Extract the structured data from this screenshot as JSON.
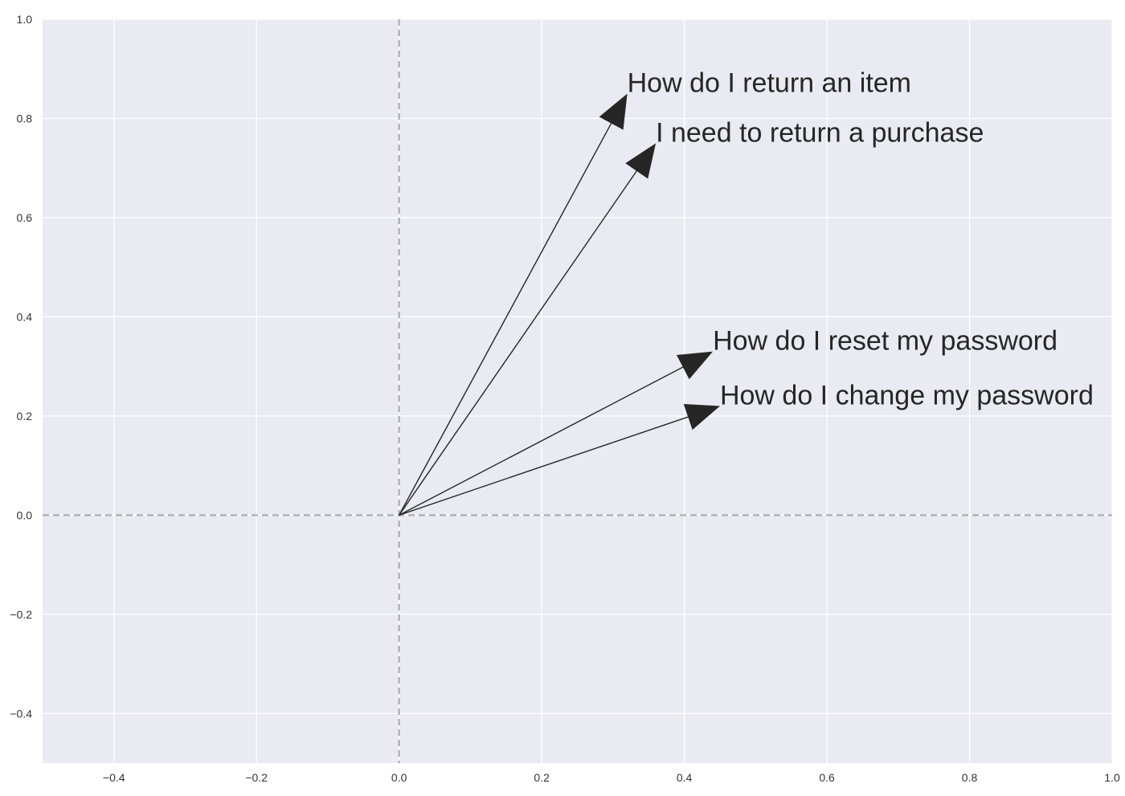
{
  "chart_data": {
    "type": "vector",
    "title": "",
    "xlabel": "",
    "ylabel": "",
    "xlim": [
      -0.5,
      1.0
    ],
    "ylim": [
      -0.5,
      1.0
    ],
    "grid": true,
    "xticks": [
      -0.4,
      -0.2,
      0.0,
      0.2,
      0.4,
      0.6,
      0.8,
      1.0
    ],
    "yticks": [
      -0.4,
      -0.2,
      0.0,
      0.2,
      0.4,
      0.6,
      0.8,
      1.0
    ],
    "xtick_labels": [
      "−0.4",
      "−0.2",
      "0.0",
      "0.2",
      "0.4",
      "0.6",
      "0.8",
      "1.0"
    ],
    "ytick_labels": [
      "−0.4",
      "−0.2",
      "0.0",
      "0.2",
      "0.4",
      "0.6",
      "0.8",
      "1.0"
    ],
    "reference_lines": {
      "x": 0.0,
      "y": 0.0,
      "style": "dashed"
    },
    "vectors": [
      {
        "label": "How do I return an item",
        "x": 0.32,
        "y": 0.85
      },
      {
        "label": "I need to return a purchase",
        "x": 0.36,
        "y": 0.75
      },
      {
        "label": "How do I reset my password",
        "x": 0.44,
        "y": 0.33
      },
      {
        "label": "How do I change my password",
        "x": 0.45,
        "y": 0.22
      }
    ],
    "colors": {
      "plot_background": "#eaeaf2",
      "grid": "#ffffff",
      "reference_line": "#a8a8a8",
      "arrow": "#262626"
    }
  }
}
